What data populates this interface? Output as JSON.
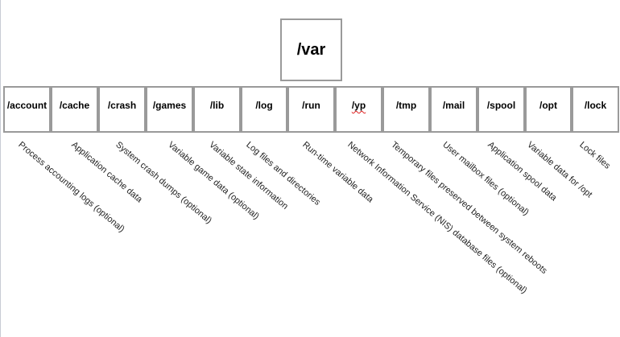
{
  "root": {
    "label": "/var"
  },
  "directories": [
    {
      "name": "/account",
      "description": "Process accounting logs (optional)"
    },
    {
      "name": "/cache",
      "description": "Application cache data"
    },
    {
      "name": "/crash",
      "description": "System crash dumps (optional)"
    },
    {
      "name": "/games",
      "description": "Variable game data (optional)"
    },
    {
      "name": "/lib",
      "description": "Variable state information"
    },
    {
      "name": "/log",
      "description": "Log files and directories"
    },
    {
      "name": "/run",
      "description": "Run-time variable data"
    },
    {
      "name": "/yp",
      "description": "Network Information Service (NIS) database files (optional)"
    },
    {
      "name": "/tmp",
      "description": "Temporary files preserved between system reboots"
    },
    {
      "name": "/mail",
      "description": "User mailbox files (optional)"
    },
    {
      "name": "/spool",
      "description": "Application spool data"
    },
    {
      "name": "/opt",
      "description": "Variable data for /opt"
    },
    {
      "name": "/lock",
      "description": "Lock files"
    }
  ]
}
